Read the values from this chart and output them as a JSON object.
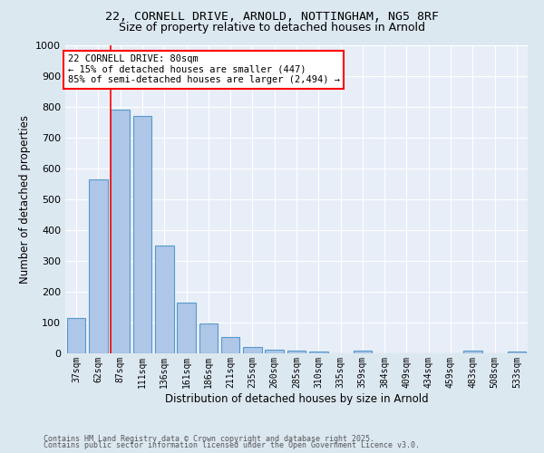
{
  "title_line1": "22, CORNELL DRIVE, ARNOLD, NOTTINGHAM, NG5 8RF",
  "title_line2": "Size of property relative to detached houses in Arnold",
  "xlabel": "Distribution of detached houses by size in Arnold",
  "ylabel": "Number of detached properties",
  "bar_color": "#aec6e8",
  "bar_edge_color": "#5599cc",
  "background_color": "#e8eef8",
  "fig_background_color": "#dce8f0",
  "grid_color": "#ffffff",
  "categories": [
    "37sqm",
    "62sqm",
    "87sqm",
    "111sqm",
    "136sqm",
    "161sqm",
    "186sqm",
    "211sqm",
    "235sqm",
    "260sqm",
    "285sqm",
    "310sqm",
    "335sqm",
    "359sqm",
    "384sqm",
    "409sqm",
    "434sqm",
    "459sqm",
    "483sqm",
    "508sqm",
    "533sqm"
  ],
  "values": [
    115,
    565,
    790,
    770,
    350,
    165,
    98,
    53,
    20,
    13,
    10,
    5,
    0,
    8,
    0,
    0,
    0,
    0,
    10,
    0,
    5
  ],
  "ylim": [
    0,
    1000
  ],
  "yticks": [
    0,
    100,
    200,
    300,
    400,
    500,
    600,
    700,
    800,
    900,
    1000
  ],
  "red_line_index": 2,
  "annotation_text": "22 CORNELL DRIVE: 80sqm\n← 15% of detached houses are smaller (447)\n85% of semi-detached houses are larger (2,494) →",
  "footnote_line1": "Contains HM Land Registry data © Crown copyright and database right 2025.",
  "footnote_line2": "Contains public sector information licensed under the Open Government Licence v3.0.",
  "title1_fontsize": 9.5,
  "title2_fontsize": 9,
  "bar_width": 0.85
}
